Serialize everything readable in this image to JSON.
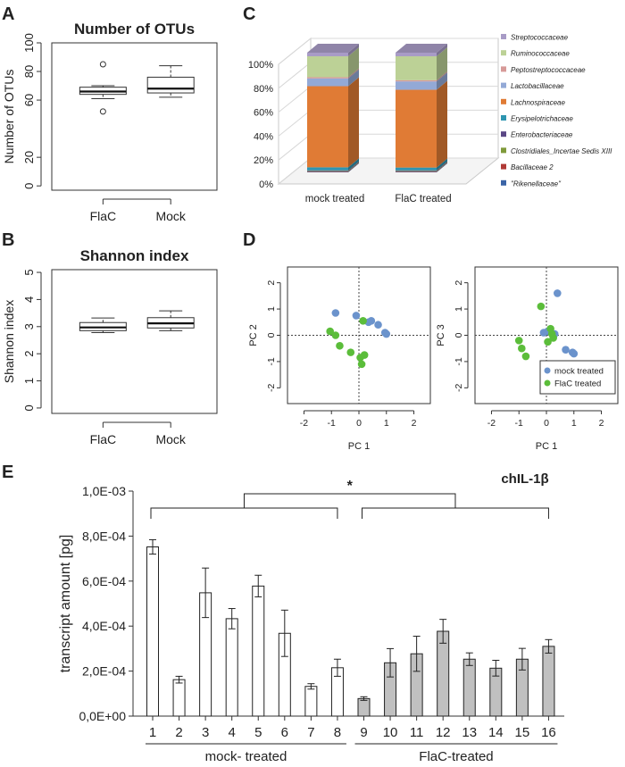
{
  "panels": {
    "a": "A",
    "b": "B",
    "c": "C",
    "d": "D",
    "e": "E"
  },
  "chart_data": [
    {
      "id": "A",
      "type": "box",
      "title": "Number of OTUs",
      "ylabel": "Number of OTUs",
      "ylim": [
        -3,
        100
      ],
      "yticks": [
        0,
        20,
        60,
        80,
        100
      ],
      "categories": [
        "FlaC",
        "Mock"
      ],
      "boxes": [
        {
          "min": 61,
          "q1": 64,
          "median": 66,
          "q3": 69,
          "max": 70,
          "outliers": [
            52,
            85
          ]
        },
        {
          "min": 62,
          "q1": 65,
          "median": 68,
          "q3": 76,
          "max": 84,
          "outliers": []
        }
      ]
    },
    {
      "id": "B",
      "type": "box",
      "title": "Shannon index",
      "ylabel": "Shannon index",
      "ylim": [
        -0.2,
        5.1
      ],
      "yticks": [
        0,
        1,
        2,
        3,
        4,
        5
      ],
      "categories": [
        "FlaC",
        "Mock"
      ],
      "boxes": [
        {
          "min": 2.78,
          "q1": 2.85,
          "median": 2.97,
          "q3": 3.15,
          "max": 3.32,
          "outliers": []
        },
        {
          "min": 2.85,
          "q1": 2.95,
          "median": 3.12,
          "q3": 3.33,
          "max": 3.58,
          "outliers": []
        }
      ]
    },
    {
      "id": "C",
      "type": "bar",
      "categories": [
        "mock treated",
        "FlaC treated"
      ],
      "yticks": [
        "0%",
        "20%",
        "40%",
        "60%",
        "80%",
        "100%"
      ],
      "series": [
        {
          "name": "\"Rikenellaceae\"",
          "color": "#3a64a6",
          "values": [
            0.5,
            0.5
          ]
        },
        {
          "name": "Bacillaceae 2",
          "color": "#b03a36",
          "values": [
            0.3,
            0.3
          ]
        },
        {
          "name": "Clostridiales_Incertae Sedis XIII",
          "color": "#7f9a3a",
          "values": [
            0.4,
            0.4
          ]
        },
        {
          "name": "Enterobacteriaceae",
          "color": "#5a4785",
          "values": [
            0.5,
            0.5
          ]
        },
        {
          "name": "Erysipelotrichaceae",
          "color": "#2e95b0",
          "values": [
            2.5,
            2.3
          ]
        },
        {
          "name": "Lachnospiraceae",
          "color": "#e07b35",
          "values": [
            67.8,
            65.0
          ]
        },
        {
          "name": "Lactobacillaceae",
          "color": "#93a9d6",
          "values": [
            6.5,
            7.0
          ]
        },
        {
          "name": "Peptostreptococcaceae",
          "color": "#d79a98",
          "values": [
            1.0,
            1.0
          ]
        },
        {
          "name": "Ruminococcaceae",
          "color": "#bcd196",
          "values": [
            17.5,
            20.0
          ]
        },
        {
          "name": "Streptococcaceae",
          "color": "#a89bc6",
          "values": [
            3.0,
            3.0
          ]
        }
      ]
    },
    {
      "id": "D1",
      "type": "scatter",
      "xlabel": "PC 1",
      "ylabel": "PC 2",
      "ticks": [
        "-2",
        "-1",
        "0",
        "1",
        "2"
      ],
      "series": [
        {
          "name": "mock treated",
          "color": "#6b93cc",
          "points": [
            [
              -0.85,
              0.85
            ],
            [
              -0.1,
              0.75
            ],
            [
              0.35,
              0.5
            ],
            [
              0.45,
              0.55
            ],
            [
              0.7,
              0.4
            ],
            [
              1.0,
              0.05
            ],
            [
              0.95,
              0.1
            ]
          ]
        },
        {
          "name": "FlaC treated",
          "color": "#5bbd3a",
          "points": [
            [
              -1.05,
              0.15
            ],
            [
              0.15,
              0.55
            ],
            [
              -0.85,
              0.0
            ],
            [
              -0.7,
              -0.4
            ],
            [
              -0.3,
              -0.65
            ],
            [
              0.05,
              -0.85
            ],
            [
              0.2,
              -0.75
            ],
            [
              0.1,
              -1.1
            ]
          ]
        }
      ]
    },
    {
      "id": "D2",
      "type": "scatter",
      "xlabel": "PC 1",
      "ylabel": "PC 3",
      "ticks": [
        "-2",
        "-1",
        "0",
        "1",
        "2"
      ],
      "legend": [
        "mock treated",
        "FlaC treated"
      ],
      "series": [
        {
          "name": "mock treated",
          "color": "#6b93cc",
          "points": [
            [
              0.4,
              1.6
            ],
            [
              -0.1,
              0.1
            ],
            [
              0.05,
              0.15
            ],
            [
              0.3,
              0.05
            ],
            [
              0.7,
              -0.55
            ],
            [
              1.0,
              -0.7
            ],
            [
              0.95,
              -0.65
            ]
          ]
        },
        {
          "name": "FlaC treated",
          "color": "#5bbd3a",
          "points": [
            [
              -0.2,
              1.1
            ],
            [
              0.15,
              0.25
            ],
            [
              -1.0,
              -0.2
            ],
            [
              -0.9,
              -0.5
            ],
            [
              -0.75,
              -0.8
            ],
            [
              0.05,
              -0.25
            ],
            [
              0.25,
              -0.1
            ],
            [
              0.2,
              0.05
            ]
          ]
        }
      ]
    },
    {
      "id": "E",
      "type": "bar",
      "title": "chIL-1β",
      "ylabel": "transcript amount [pg]",
      "ylim": [
        0,
        0.001
      ],
      "yticks": [
        "0,0E+00",
        "2,0E-04",
        "4,0E-04",
        "6,0E-04",
        "8,0E-04",
        "1,0E-03"
      ],
      "categories": [
        "1",
        "2",
        "3",
        "4",
        "5",
        "6",
        "7",
        "8",
        "9",
        "10",
        "11",
        "12",
        "13",
        "14",
        "15",
        "16"
      ],
      "values": [
        0.000752,
        0.000162,
        0.000548,
        0.000433,
        0.000578,
        0.000368,
        0.000132,
        0.000215,
        7.8e-05,
        0.000237,
        0.000277,
        0.000377,
        0.000253,
        0.000213,
        0.000253,
        0.00031
      ],
      "errors": [
        3.2e-05,
        1.5e-05,
        0.00011,
        4.5e-05,
        4.8e-05,
        0.000103,
        1.2e-05,
        3.8e-05,
        8e-06,
        6.3e-05,
        7.8e-05,
        5.3e-05,
        2.8e-05,
        3.5e-05,
        4.8e-05,
        3e-05
      ],
      "group_labels": [
        "mock- treated",
        "FlaC-treated"
      ],
      "significance": "*"
    }
  ]
}
